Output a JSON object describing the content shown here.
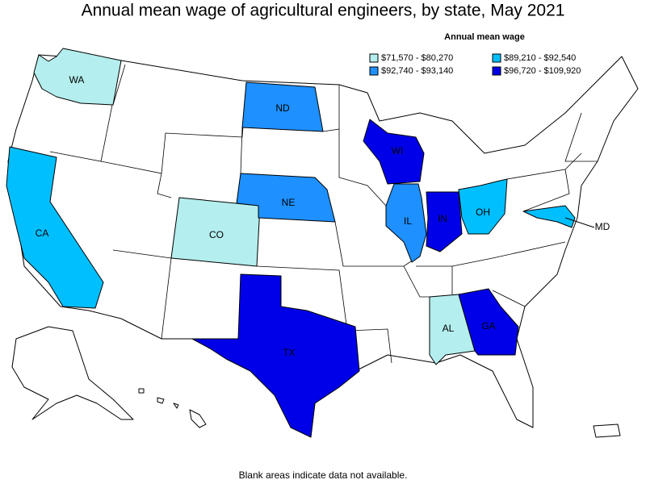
{
  "title": "Annual mean wage of agricultural engineers, by state, May 2021",
  "legend": {
    "title": "Annual mean wage",
    "items": [
      {
        "label": "$71,570 - $80,270",
        "color": "#b4eeee"
      },
      {
        "label": "$89,210 - $92,540",
        "color": "#00bfff"
      },
      {
        "label": "$92,740 - $93,140",
        "color": "#1e90ff"
      },
      {
        "label": "$96,720 - $109,920",
        "color": "#0000e8"
      }
    ]
  },
  "states": [
    {
      "label": "WA",
      "color": "#b4eeee"
    },
    {
      "label": "CA",
      "color": "#00bfff"
    },
    {
      "label": "CO",
      "color": "#b4eeee"
    },
    {
      "label": "ND",
      "color": "#1e90ff"
    },
    {
      "label": "NE",
      "color": "#1e90ff"
    },
    {
      "label": "WI",
      "color": "#0000e8"
    },
    {
      "label": "IL",
      "color": "#1e90ff"
    },
    {
      "label": "IN",
      "color": "#0000e8"
    },
    {
      "label": "OH",
      "color": "#00bfff"
    },
    {
      "label": "MD",
      "color": "#00bfff"
    },
    {
      "label": "TX",
      "color": "#0000e8"
    },
    {
      "label": "AL",
      "color": "#b4eeee"
    },
    {
      "label": "GA",
      "color": "#0000e8"
    }
  ],
  "footnote": "Blank areas indicate data not available."
}
